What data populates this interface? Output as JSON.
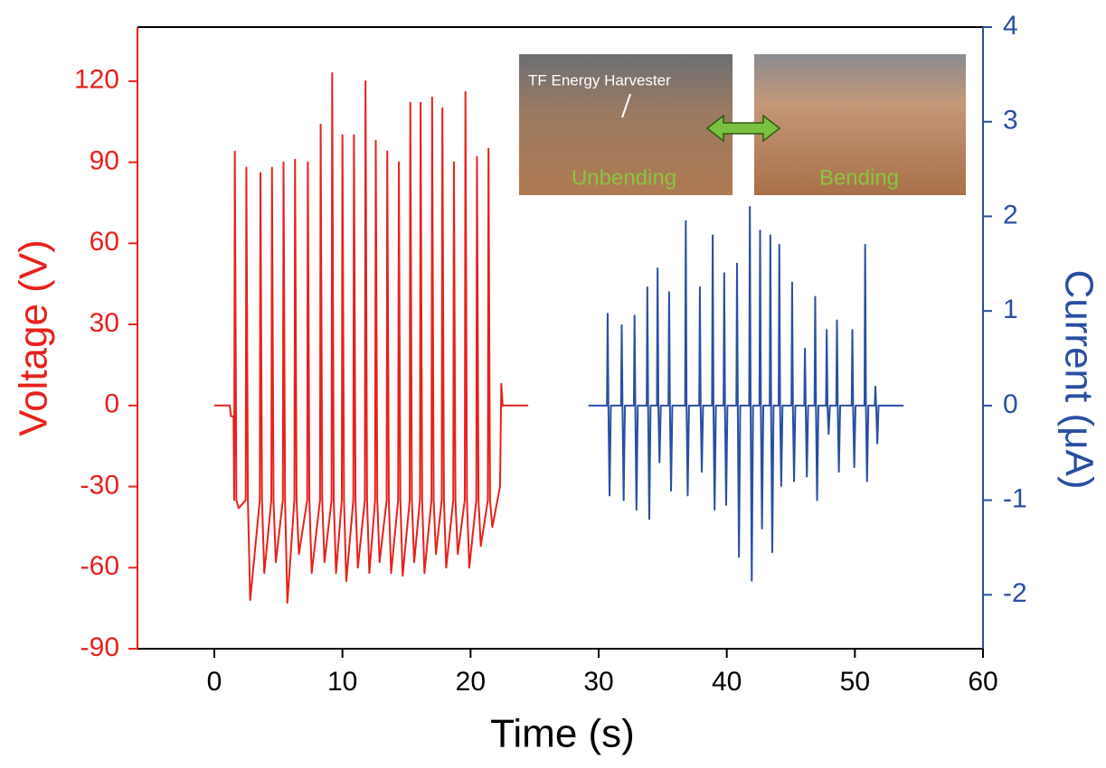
{
  "chart_data": {
    "type": "line",
    "xlabel": "Time (s)",
    "ylabel": "Voltage (V)",
    "y2label": "Current (μA)",
    "xlim": [
      -6,
      60
    ],
    "xticks": [
      0,
      10,
      20,
      30,
      40,
      50,
      60
    ],
    "ylim": [
      -90,
      140
    ],
    "yticks": [
      -90,
      -60,
      -30,
      0,
      30,
      60,
      90,
      120
    ],
    "y2lim": [
      -2.57,
      4
    ],
    "y2ticks": [
      -2,
      -1,
      0,
      1,
      2,
      3,
      4
    ],
    "inset": {
      "device_label": "TF Energy Harvester",
      "left_label": "Unbending",
      "right_label": "Bending"
    },
    "series": [
      {
        "color": "#e8211c",
        "axis": "y",
        "x": [
          0,
          1.2,
          1.3,
          1.5,
          1.55,
          1.6,
          1.72,
          1.9,
          2.45,
          2.5,
          2.62,
          2.8,
          3.55,
          3.6,
          3.72,
          3.9,
          4.45,
          4.5,
          4.62,
          4.8,
          5.35,
          5.4,
          5.52,
          5.7,
          6.25,
          6.3,
          6.42,
          6.6,
          7.25,
          7.3,
          7.42,
          7.6,
          8.25,
          8.3,
          8.42,
          8.6,
          9.15,
          9.2,
          9.32,
          9.5,
          9.95,
          10,
          10.12,
          10.3,
          10.85,
          10.9,
          11.02,
          11.2,
          11.75,
          11.8,
          11.92,
          12.1,
          12.55,
          12.6,
          12.72,
          12.9,
          13.45,
          13.5,
          13.62,
          13.8,
          14.35,
          14.4,
          14.52,
          14.7,
          15.25,
          15.3,
          15.42,
          15.6,
          16.05,
          16.1,
          16.22,
          16.4,
          16.95,
          17,
          17.12,
          17.3,
          17.75,
          17.8,
          17.92,
          18.1,
          18.65,
          18.7,
          18.82,
          19,
          19.55,
          19.6,
          19.72,
          19.9,
          20.45,
          20.5,
          20.62,
          20.8,
          21.35,
          21.4,
          21.52,
          21.7,
          22.3,
          22.4,
          22.5,
          24.5
        ],
        "values": [
          0,
          0,
          -4,
          -4,
          -35,
          94,
          -35,
          -38,
          -35,
          88,
          -35,
          -72,
          -35,
          86,
          -35,
          -62,
          -35,
          88,
          -35,
          -58,
          -35,
          90,
          -35,
          -73,
          -35,
          91,
          -35,
          -55,
          -35,
          90,
          -35,
          -62,
          -35,
          104,
          -35,
          -58,
          -35,
          123,
          -35,
          -62,
          -35,
          100,
          -35,
          -65,
          -35,
          100,
          -35,
          -60,
          -35,
          120,
          -35,
          -62,
          -35,
          98,
          -35,
          -58,
          -35,
          94,
          -35,
          -62,
          -35,
          90,
          -35,
          -63,
          -35,
          112,
          -35,
          -58,
          -35,
          112,
          -35,
          -62,
          -35,
          114,
          -35,
          -55,
          -35,
          110,
          -35,
          -60,
          -35,
          90,
          -35,
          -55,
          -35,
          116,
          -35,
          -60,
          -35,
          92,
          -35,
          -52,
          -35,
          95,
          -35,
          -45,
          -30,
          8,
          0,
          0
        ]
      },
      {
        "color": "#2a4ea2",
        "axis": "y2",
        "x": [
          29.2,
          30.65,
          30.7,
          30.76,
          30.85,
          30.95,
          31.75,
          31.8,
          31.86,
          31.95,
          32.05,
          32.75,
          32.8,
          32.86,
          32.95,
          33.05,
          33.75,
          33.8,
          33.86,
          33.95,
          34.05,
          34.55,
          34.6,
          34.66,
          34.75,
          34.85,
          35.45,
          35.5,
          35.56,
          35.65,
          35.75,
          36.75,
          36.8,
          36.86,
          36.95,
          37.05,
          37.85,
          37.9,
          37.96,
          38.05,
          38.15,
          38.85,
          38.9,
          38.96,
          39.05,
          39.15,
          39.75,
          39.8,
          39.86,
          39.95,
          40.05,
          40.75,
          40.8,
          40.86,
          40.95,
          41.05,
          41.75,
          41.8,
          41.86,
          41.95,
          42.05,
          42.55,
          42.6,
          42.66,
          42.75,
          42.85,
          43.35,
          43.4,
          43.46,
          43.55,
          43.65,
          44.05,
          44.1,
          44.16,
          44.25,
          44.35,
          45.05,
          45.1,
          45.16,
          45.25,
          45.35,
          46.05,
          46.1,
          46.16,
          46.25,
          46.35,
          46.85,
          46.9,
          46.96,
          47.05,
          47.15,
          47.75,
          47.8,
          47.86,
          47.95,
          48.05,
          48.55,
          48.6,
          48.66,
          48.75,
          48.85,
          49.75,
          49.8,
          49.86,
          49.95,
          50.05,
          50.75,
          50.8,
          50.86,
          50.95,
          51.05,
          51.55,
          51.6,
          51.66,
          51.75,
          51.85,
          53.8
        ],
        "values": [
          0,
          0,
          0.97,
          0,
          -0.95,
          0,
          0,
          0.85,
          0,
          -1.0,
          0,
          0,
          0.95,
          0,
          -1.1,
          0,
          0,
          1.25,
          0,
          -1.2,
          0,
          0,
          1.45,
          0,
          -0.6,
          0,
          0,
          1.2,
          0,
          -0.9,
          0,
          0,
          1.95,
          0,
          -0.95,
          0,
          0,
          1.25,
          0,
          -0.7,
          0,
          0,
          1.8,
          0,
          -1.1,
          0,
          0,
          1.4,
          0,
          -1.05,
          0,
          0,
          1.5,
          0,
          -1.6,
          0,
          0,
          2.1,
          0,
          -1.85,
          0,
          0,
          1.85,
          0,
          -1.3,
          0,
          0,
          1.8,
          0,
          -1.55,
          0,
          0,
          1.7,
          0,
          -0.85,
          0,
          0,
          1.3,
          0,
          -0.8,
          0,
          0,
          0.6,
          0,
          -0.75,
          0,
          0,
          1.15,
          0,
          -1.0,
          0,
          0,
          0.8,
          0,
          -0.3,
          0,
          0,
          0.9,
          0,
          -0.7,
          0,
          0,
          0.8,
          0,
          -0.65,
          0,
          0,
          1.7,
          0,
          -0.8,
          0,
          0,
          0.2,
          0,
          -0.4,
          0,
          0
        ]
      }
    ]
  }
}
